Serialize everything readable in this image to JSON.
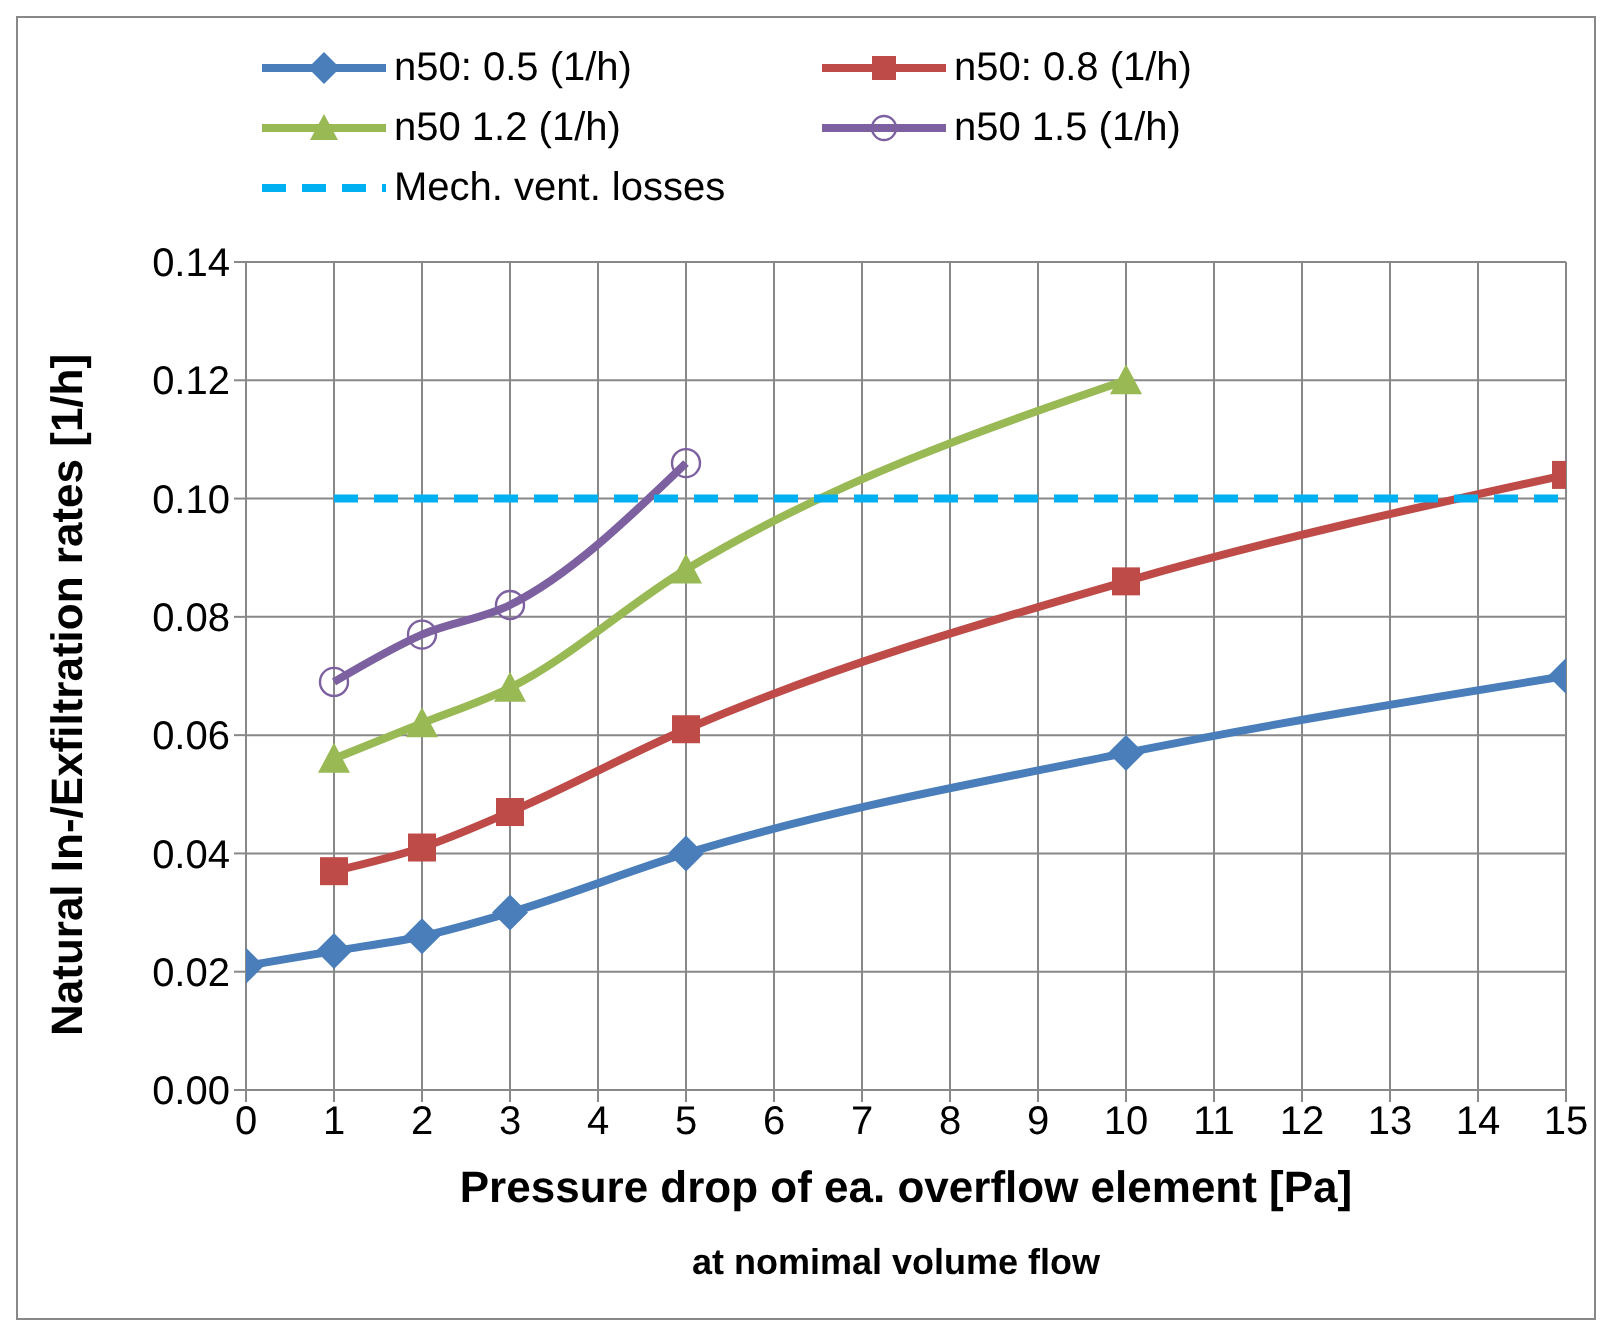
{
  "chart_data": {
    "type": "line",
    "xlabel": "Pressure drop of ea. overflow element [Pa]",
    "ylabel": "Natural In-/Exfiltration rates  [1/h]",
    "annotations": [
      "at nomimal volume flow"
    ],
    "x": [
      0,
      1,
      2,
      3,
      5,
      10,
      15
    ],
    "series": [
      {
        "name": "n50: 0.5 (1/h)",
        "color": "#4a7ebb",
        "marker": "diamond",
        "values": [
          0.021,
          0.0235,
          0.026,
          0.03,
          0.04,
          0.057,
          0.07
        ]
      },
      {
        "name": "n50: 0.8 (1/h)",
        "color": "#be4b48",
        "marker": "square",
        "values": [
          null,
          0.037,
          0.041,
          0.047,
          0.061,
          0.086,
          0.104
        ]
      },
      {
        "name": "n50 1.2 (1/h)",
        "color": "#98b954",
        "marker": "triangle",
        "values": [
          null,
          0.056,
          0.062,
          0.068,
          0.088,
          0.12,
          null
        ]
      },
      {
        "name": "n50 1.5 (1/h)",
        "color": "#7d60a0",
        "marker": "circle",
        "values": [
          null,
          0.069,
          0.077,
          0.082,
          0.106,
          null,
          null
        ]
      },
      {
        "name": "Mech. vent. losses",
        "color": "#00b0f0",
        "marker": "none",
        "line_style": "dashed",
        "values": [
          null,
          0.1,
          0.1,
          0.1,
          0.1,
          0.1,
          0.1
        ]
      }
    ],
    "xlim": [
      0,
      15
    ],
    "xticks": [
      0,
      1,
      2,
      3,
      4,
      5,
      6,
      7,
      8,
      9,
      10,
      11,
      12,
      13,
      14,
      15
    ],
    "ylim": [
      0,
      0.14
    ],
    "yticks": [
      {
        "value": 0,
        "label": "0.00"
      },
      0.02,
      0.04,
      0.06,
      0.08,
      {
        "value": 0.1,
        "label": "0.10"
      },
      0.12,
      0.14
    ],
    "grid": true,
    "legend": "top",
    "line_style": "solid"
  }
}
